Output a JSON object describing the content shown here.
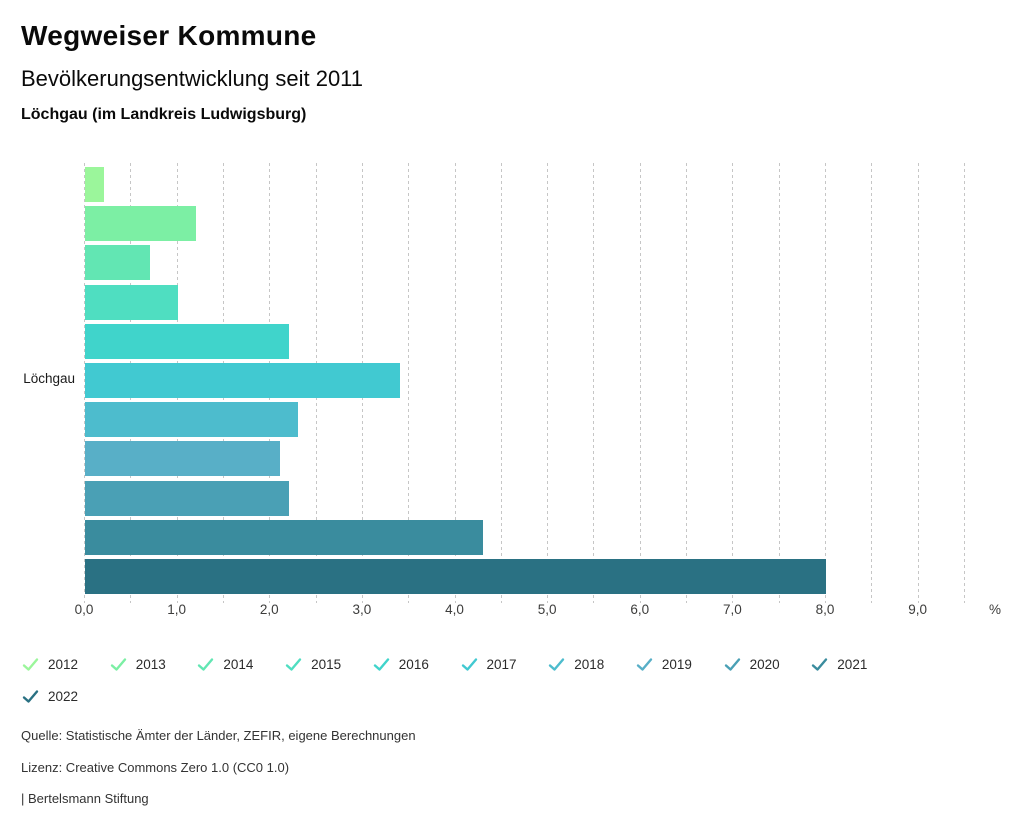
{
  "header": {
    "app_title": "Wegweiser Kommune"
  },
  "chart_data": {
    "type": "bar",
    "orientation": "horizontal",
    "title": "Bevölkerungsentwicklung seit 2011",
    "subtitle": "Löchgau (im Landkreis Ludwigsburg)",
    "category_axis_label": "Löchgau",
    "unit": "%",
    "categories": [
      "2012",
      "2013",
      "2014",
      "2015",
      "2016",
      "2017",
      "2018",
      "2019",
      "2020",
      "2021",
      "2022"
    ],
    "values": [
      0.2,
      1.2,
      0.7,
      1.0,
      2.2,
      3.4,
      2.3,
      2.1,
      2.2,
      4.3,
      8.0
    ],
    "colors": [
      "#9BF69B",
      "#7CEFA4",
      "#62E6B3",
      "#4FDEC1",
      "#40D4CB",
      "#41C9D1",
      "#4DBCCD",
      "#58AFC7",
      "#4AA0B5",
      "#3A8C9E",
      "#2A7183"
    ],
    "xlim": [
      0,
      9.5
    ],
    "gridline_step": 0.5,
    "x_tick_values": [
      0,
      1,
      2,
      3,
      4,
      5,
      6,
      7,
      8,
      9
    ],
    "x_tick_labels": [
      "0,0",
      "1,0",
      "2,0",
      "3,0",
      "4,0",
      "5,0",
      "6,0",
      "7,0",
      "8,0",
      "9,0"
    ],
    "x_axis_unit_label": "%",
    "grid": true,
    "legend_position": "bottom"
  },
  "footer": {
    "source": "Quelle: Statistische Ämter der Länder, ZEFIR, eigene Berechnungen",
    "license": "Lizenz: Creative Commons Zero 1.0 (CC0 1.0)",
    "attribution": "| Bertelsmann Stiftung"
  }
}
